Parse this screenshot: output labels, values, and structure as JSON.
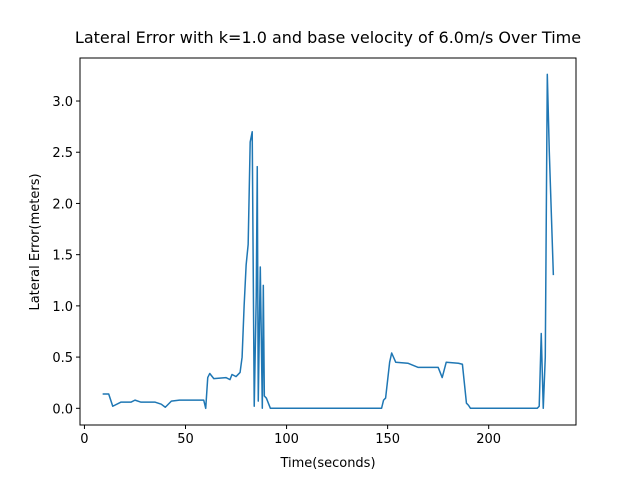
{
  "chart_data": {
    "type": "line",
    "title": "Lateral Error with k=1.0 and base velocity of 6.0m/s Over Time",
    "x_label": "Time(seconds)",
    "y_label": "Lateral Error(meters)",
    "color": "#1f77b4",
    "x": [
      9,
      12,
      14,
      18,
      23,
      25,
      28,
      35,
      38,
      40,
      43,
      47,
      59,
      60,
      61,
      62,
      64,
      70,
      72,
      73,
      75,
      77,
      78,
      79,
      80,
      81,
      82,
      83,
      84,
      85,
      85.5,
      86,
      87,
      88,
      88.5,
      89,
      90,
      92,
      130,
      147,
      148,
      149,
      151,
      152,
      154,
      160,
      165,
      175,
      177,
      179,
      185,
      187,
      189,
      190,
      191,
      224,
      225,
      226,
      227,
      228,
      229,
      230,
      232
    ],
    "values": [
      0.14,
      0.14,
      0.02,
      0.06,
      0.06,
      0.08,
      0.06,
      0.06,
      0.04,
      0.01,
      0.07,
      0.08,
      0.08,
      0.0,
      0.3,
      0.34,
      0.29,
      0.3,
      0.28,
      0.33,
      0.31,
      0.35,
      0.5,
      1.0,
      1.4,
      1.6,
      2.6,
      2.7,
      0.02,
      1.1,
      2.36,
      0.07,
      1.38,
      0.0,
      1.2,
      0.12,
      0.1,
      0.0,
      0.0,
      0.0,
      0.08,
      0.1,
      0.45,
      0.54,
      0.45,
      0.44,
      0.4,
      0.4,
      0.3,
      0.45,
      0.44,
      0.43,
      0.05,
      0.03,
      0.0,
      0.0,
      0.02,
      0.73,
      0.0,
      0.5,
      3.26,
      2.5,
      1.3
    ],
    "xlim": [
      -2.2,
      243.2
    ],
    "ylim": [
      -0.163,
      3.42
    ],
    "xticks": [
      0,
      50,
      100,
      150,
      200
    ],
    "yticks": [
      {
        "value": 0,
        "label": "0.0"
      },
      0.5,
      {
        "value": 1,
        "label": "1.0"
      },
      1.5,
      {
        "value": 2,
        "label": "2.0"
      },
      2.5,
      {
        "value": 3,
        "label": "3.0"
      }
    ]
  }
}
